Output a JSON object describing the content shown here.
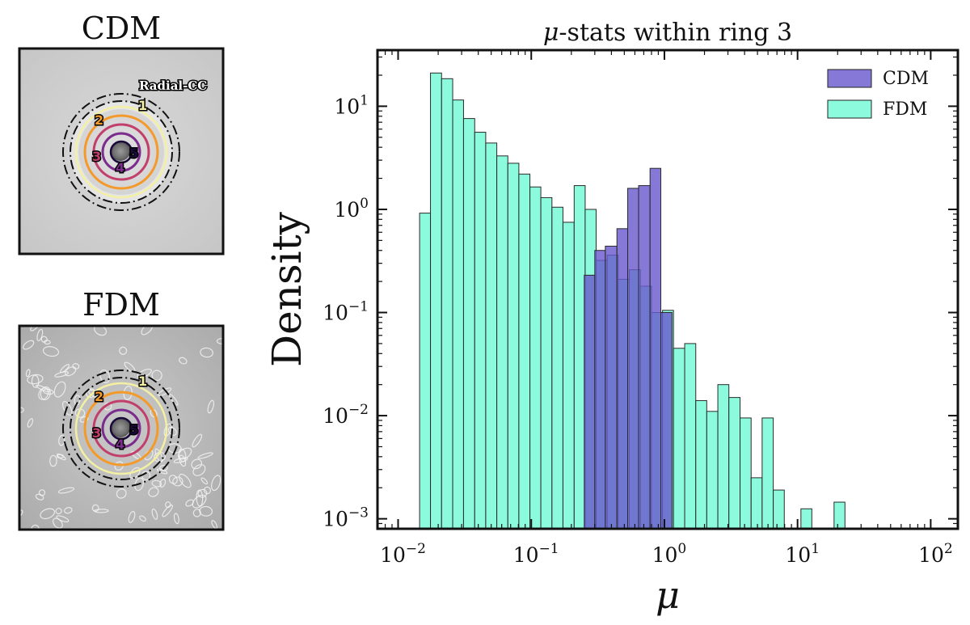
{
  "panels": [
    {
      "title": "CDM",
      "ring_labels": [
        "1",
        "2",
        "3",
        "4",
        "5"
      ],
      "cc_label": "Radial-CC"
    },
    {
      "title": "FDM",
      "ring_labels": [
        "1",
        "2",
        "3",
        "4",
        "5"
      ]
    }
  ],
  "ring_colors": [
    "#f3efa3",
    "#f39a2a",
    "#c23f6c",
    "#7b2c8c",
    "#1a0a3a"
  ],
  "chart_data": {
    "type": "bar",
    "title": "μ-stats within ring 3",
    "xlabel": "μ",
    "ylabel": "Density",
    "xscale": "log",
    "yscale": "log",
    "xlim": [
      0.007,
      160
    ],
    "ylim": [
      0.0008,
      35
    ],
    "x_ticks": [
      {
        "base": "10",
        "exp": "−2"
      },
      {
        "base": "10",
        "exp": "−1"
      },
      {
        "base": "10",
        "exp": "0"
      },
      {
        "base": "10",
        "exp": "1"
      },
      {
        "base": "10",
        "exp": "2"
      }
    ],
    "y_ticks": [
      {
        "base": "10",
        "exp": "−3"
      },
      {
        "base": "10",
        "exp": "−2"
      },
      {
        "base": "10",
        "exp": "−1"
      },
      {
        "base": "10",
        "exp": "0"
      },
      {
        "base": "10",
        "exp": "1"
      }
    ],
    "legend": {
      "position": "top-right"
    },
    "series": [
      {
        "name": "CDM",
        "color": "#6a5acd",
        "bins": [
          {
            "lo": 0.25,
            "hi": 0.3,
            "value": 0.23
          },
          {
            "lo": 0.3,
            "hi": 0.36,
            "value": 0.4
          },
          {
            "lo": 0.36,
            "hi": 0.44,
            "value": 0.44
          },
          {
            "lo": 0.44,
            "hi": 0.53,
            "value": 0.65
          },
          {
            "lo": 0.53,
            "hi": 0.64,
            "value": 1.6
          },
          {
            "lo": 0.64,
            "hi": 0.78,
            "value": 1.7
          },
          {
            "lo": 0.78,
            "hi": 0.94,
            "value": 2.5
          },
          {
            "lo": 0.94,
            "hi": 1.14,
            "value": 0.1
          }
        ]
      },
      {
        "name": "FDM",
        "color": "#7ffad8",
        "bins": [
          {
            "lo": 0.0145,
            "hi": 0.0175,
            "value": 0.92
          },
          {
            "lo": 0.0175,
            "hi": 0.0212,
            "value": 21
          },
          {
            "lo": 0.0212,
            "hi": 0.0257,
            "value": 18.5
          },
          {
            "lo": 0.0257,
            "hi": 0.031,
            "value": 11.5
          },
          {
            "lo": 0.031,
            "hi": 0.0376,
            "value": 7.6
          },
          {
            "lo": 0.0376,
            "hi": 0.0455,
            "value": 5.6
          },
          {
            "lo": 0.0455,
            "hi": 0.0551,
            "value": 4.4
          },
          {
            "lo": 0.0551,
            "hi": 0.0667,
            "value": 3.3
          },
          {
            "lo": 0.0667,
            "hi": 0.0807,
            "value": 2.8
          },
          {
            "lo": 0.0807,
            "hi": 0.0977,
            "value": 2.2
          },
          {
            "lo": 0.0977,
            "hi": 0.118,
            "value": 1.65
          },
          {
            "lo": 0.118,
            "hi": 0.143,
            "value": 1.3
          },
          {
            "lo": 0.143,
            "hi": 0.173,
            "value": 1.05
          },
          {
            "lo": 0.173,
            "hi": 0.21,
            "value": 0.75
          },
          {
            "lo": 0.21,
            "hi": 0.254,
            "value": 1.7
          },
          {
            "lo": 0.254,
            "hi": 0.307,
            "value": 1.0
          },
          {
            "lo": 0.307,
            "hi": 0.372,
            "value": 0.32
          },
          {
            "lo": 0.372,
            "hi": 0.45,
            "value": 0.36
          },
          {
            "lo": 0.45,
            "hi": 0.545,
            "value": 0.21
          },
          {
            "lo": 0.545,
            "hi": 0.66,
            "value": 0.26
          },
          {
            "lo": 0.66,
            "hi": 0.8,
            "value": 0.18
          },
          {
            "lo": 0.8,
            "hi": 0.968,
            "value": 0.1
          },
          {
            "lo": 0.968,
            "hi": 1.17,
            "value": 0.105
          },
          {
            "lo": 1.17,
            "hi": 1.42,
            "value": 0.045
          },
          {
            "lo": 1.42,
            "hi": 1.72,
            "value": 0.05
          },
          {
            "lo": 1.72,
            "hi": 2.08,
            "value": 0.014
          },
          {
            "lo": 2.08,
            "hi": 2.52,
            "value": 0.011
          },
          {
            "lo": 2.52,
            "hi": 3.05,
            "value": 0.02
          },
          {
            "lo": 3.05,
            "hi": 3.7,
            "value": 0.015
          },
          {
            "lo": 3.7,
            "hi": 4.48,
            "value": 0.0095
          },
          {
            "lo": 4.48,
            "hi": 5.42,
            "value": 0.0025
          },
          {
            "lo": 5.42,
            "hi": 6.57,
            "value": 0.0095
          },
          {
            "lo": 6.57,
            "hi": 7.95,
            "value": 0.0019
          },
          {
            "lo": 10.6,
            "hi": 12.8,
            "value": 0.00125
          },
          {
            "lo": 18.8,
            "hi": 22.7,
            "value": 0.00145
          }
        ]
      }
    ]
  }
}
